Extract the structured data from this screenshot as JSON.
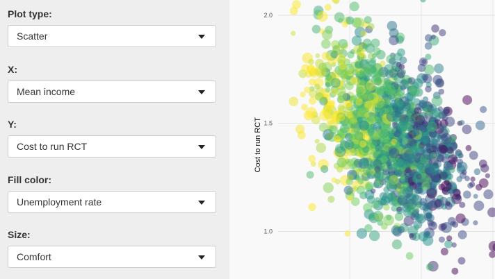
{
  "controls": {
    "plot_type": {
      "label": "Plot type:",
      "value": "Scatter"
    },
    "x": {
      "label": "X:",
      "value": "Mean income"
    },
    "y": {
      "label": "Y:",
      "value": "Cost to run RCT"
    },
    "fill_color": {
      "label": "Fill color:",
      "value": "Unemployment rate"
    },
    "size": {
      "label": "Size:",
      "value": "Comfort"
    }
  },
  "icons": {
    "dropdown": "caret-down-icon"
  },
  "chart_data": {
    "type": "scatter",
    "ylabel": "Cost to run RCT",
    "xlabel": "",
    "yticks": [
      1.0,
      1.5,
      2.0
    ],
    "ylim": [
      0.78,
      2.07
    ],
    "xlim": [
      0,
      1
    ],
    "colormap": [
      "#440154",
      "#3b528b",
      "#21918c",
      "#5ec962",
      "#fde725"
    ],
    "point_opacity": 0.5,
    "points_shown": 1400
  }
}
